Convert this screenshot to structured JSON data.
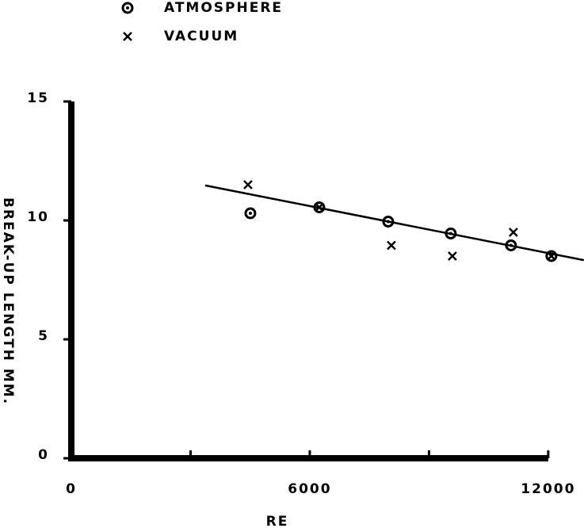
{
  "chart_data": {
    "type": "scatter",
    "x_label": "RE",
    "y_label": "BREAK-UP LENGTH MM.",
    "xlim": [
      0,
      12900
    ],
    "ylim": [
      0,
      15
    ],
    "xticks": [
      0,
      6000,
      12000
    ],
    "x_minor_ticks": [
      3000,
      9000
    ],
    "yticks": [
      0,
      5,
      10,
      15
    ],
    "series": [
      {
        "name": "ATMOSPHERE",
        "marker": "circle",
        "color": "#000000",
        "x": [
          4505,
          6239,
          7973,
          9548,
          11063,
          12079
        ],
        "y": [
          10.3,
          10.55,
          9.95,
          9.45,
          8.95,
          8.5
        ]
      },
      {
        "name": "VACUUM",
        "marker": "x",
        "color": "#000000",
        "x": [
          4445,
          6239,
          8053,
          9588,
          11123,
          12079
        ],
        "y": [
          11.5,
          10.55,
          8.95,
          8.5,
          9.5,
          8.5
        ]
      }
    ],
    "fit_line": {
      "x": [
        3369,
        12896
      ],
      "y": [
        11.47,
        8.33
      ],
      "color": "#000000"
    }
  }
}
